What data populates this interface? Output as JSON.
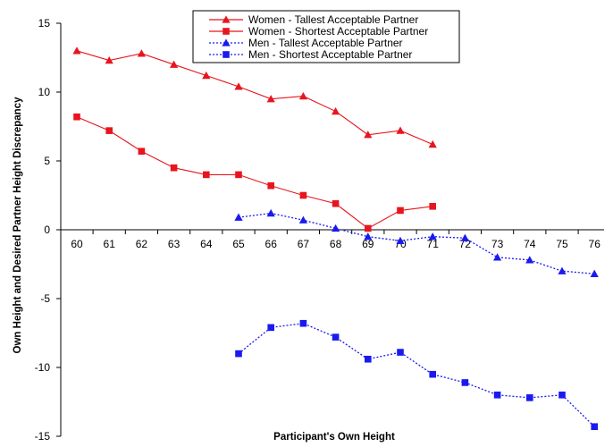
{
  "chart_data": {
    "type": "line",
    "title": "",
    "xlabel": "Participant's Own Height",
    "ylabel": "Own Height and Desired Partner Height Discrepancy",
    "ylim": [
      -15,
      15
    ],
    "yticks": [
      "15",
      "10",
      "5",
      "0",
      "-5",
      "-10",
      "-15"
    ],
    "categories": [
      "60",
      "61",
      "62",
      "63",
      "64",
      "65",
      "66",
      "67",
      "68",
      "69",
      "70",
      "71",
      "72",
      "73",
      "74",
      "75",
      "76"
    ],
    "legend_position": "top-right",
    "series": [
      {
        "name": "Women - Tallest Acceptable Partner",
        "color": "#e8151f",
        "line_style": "solid",
        "marker": "triangle",
        "x": [
          60,
          61,
          62,
          63,
          64,
          65,
          66,
          67,
          68,
          69,
          70,
          71
        ],
        "values": [
          13.0,
          12.3,
          12.8,
          12.0,
          11.2,
          10.4,
          9.5,
          9.7,
          8.6,
          6.9,
          7.2,
          6.2
        ]
      },
      {
        "name": "Women - Shortest Acceptable Partner",
        "color": "#e8151f",
        "line_style": "solid",
        "marker": "square",
        "x": [
          60,
          61,
          62,
          63,
          64,
          65,
          66,
          67,
          68,
          69,
          70,
          71
        ],
        "values": [
          8.2,
          7.2,
          5.7,
          4.5,
          4.0,
          4.0,
          3.2,
          2.5,
          1.9,
          0.1,
          1.4,
          1.7
        ]
      },
      {
        "name": "Men - Tallest Acceptable Partner",
        "color": "#1a1af0",
        "line_style": "dotted",
        "marker": "triangle",
        "x": [
          65,
          66,
          67,
          68,
          69,
          70,
          71,
          72,
          73,
          74,
          75,
          76
        ],
        "values": [
          0.9,
          1.2,
          0.7,
          0.1,
          -0.5,
          -0.8,
          -0.5,
          -0.6,
          -2.0,
          -2.2,
          -3.0,
          -3.2
        ]
      },
      {
        "name": "Men - Shortest Acceptable Partner",
        "color": "#1a1af0",
        "line_style": "dotted",
        "marker": "square",
        "x": [
          65,
          66,
          67,
          68,
          69,
          70,
          71,
          72,
          73,
          74,
          75,
          76
        ],
        "values": [
          -9.0,
          -7.1,
          -6.8,
          -7.8,
          -9.4,
          -8.9,
          -10.5,
          -11.1,
          -12.0,
          -12.2,
          -12.0,
          -14.3
        ]
      }
    ]
  }
}
